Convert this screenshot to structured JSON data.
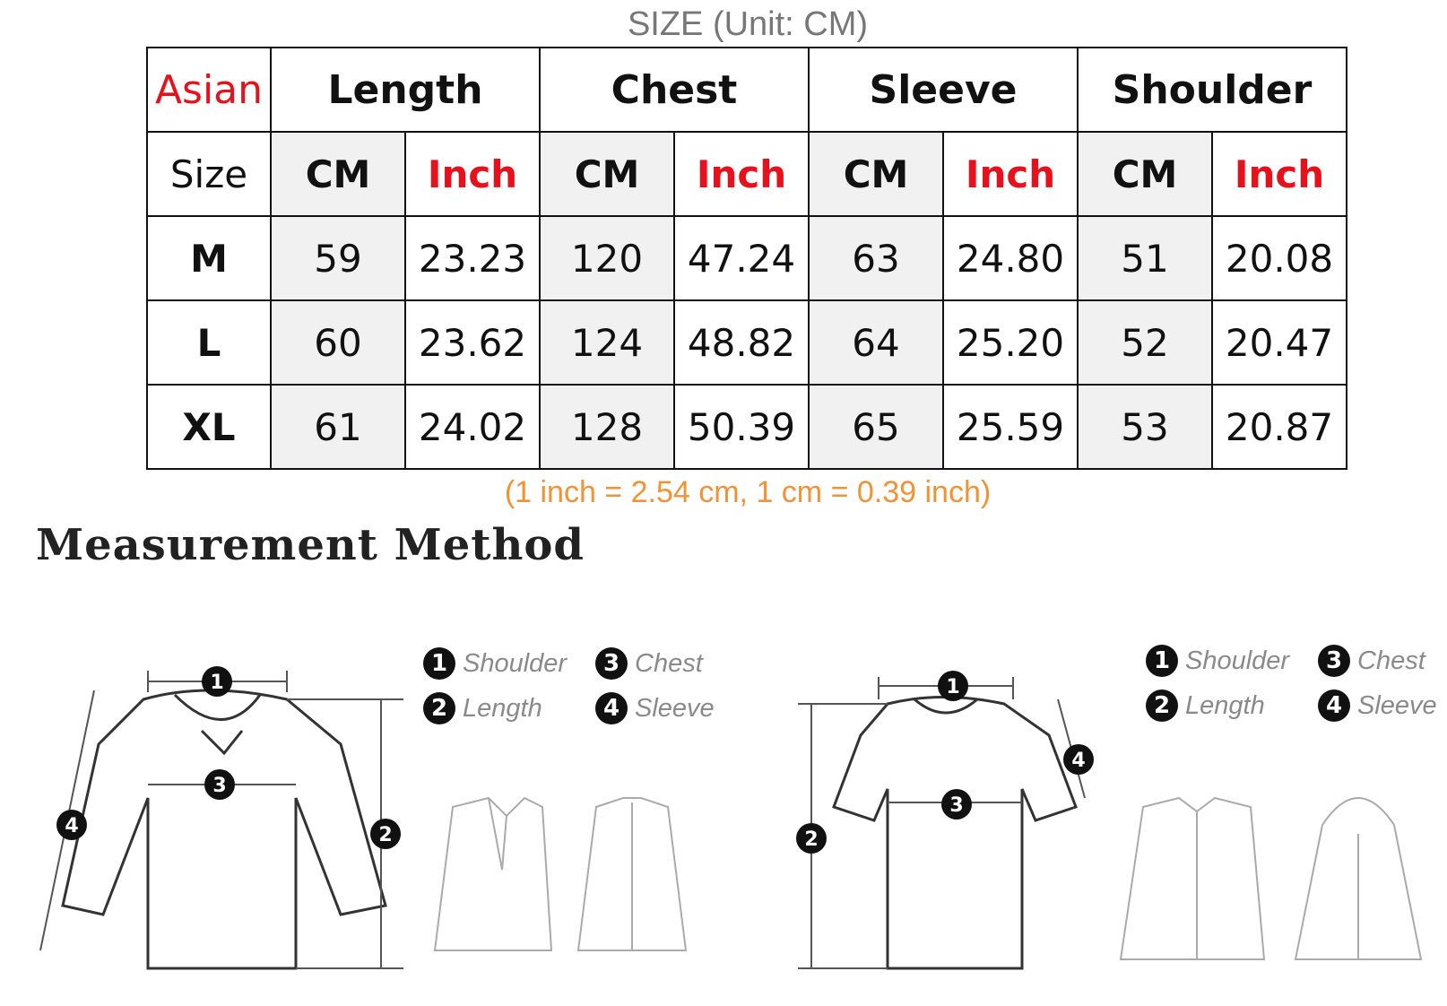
{
  "title": "SIZE (Unit: CM)",
  "table": {
    "corner_top": "Asian",
    "corner_bottom": "Size",
    "groups": [
      "Length",
      "Chest",
      "Sleeve",
      "Shoulder"
    ],
    "unit_cm": "CM",
    "unit_inch": "Inch",
    "rows": [
      {
        "size": "M",
        "values": [
          "59",
          "23.23",
          "120",
          "47.24",
          "63",
          "24.80",
          "51",
          "20.08"
        ]
      },
      {
        "size": "L",
        "values": [
          "60",
          "23.62",
          "124",
          "48.82",
          "64",
          "25.20",
          "52",
          "20.47"
        ]
      },
      {
        "size": "XL",
        "values": [
          "61",
          "24.02",
          "128",
          "50.39",
          "65",
          "25.59",
          "53",
          "20.87"
        ]
      }
    ]
  },
  "conversion_note": "(1 inch = 2.54 cm, 1 cm = 0.39 inch)",
  "method_heading": "Measurement Method",
  "legend": [
    {
      "num": "1",
      "label": "Shoulder"
    },
    {
      "num": "2",
      "label": "Length"
    },
    {
      "num": "3",
      "label": "Chest"
    },
    {
      "num": "4",
      "label": "Sleeve"
    }
  ],
  "colors": {
    "red": "#e8101a",
    "orange": "#f39232",
    "gray_title": "#777777",
    "cm_fill": "#f1f1f1"
  }
}
